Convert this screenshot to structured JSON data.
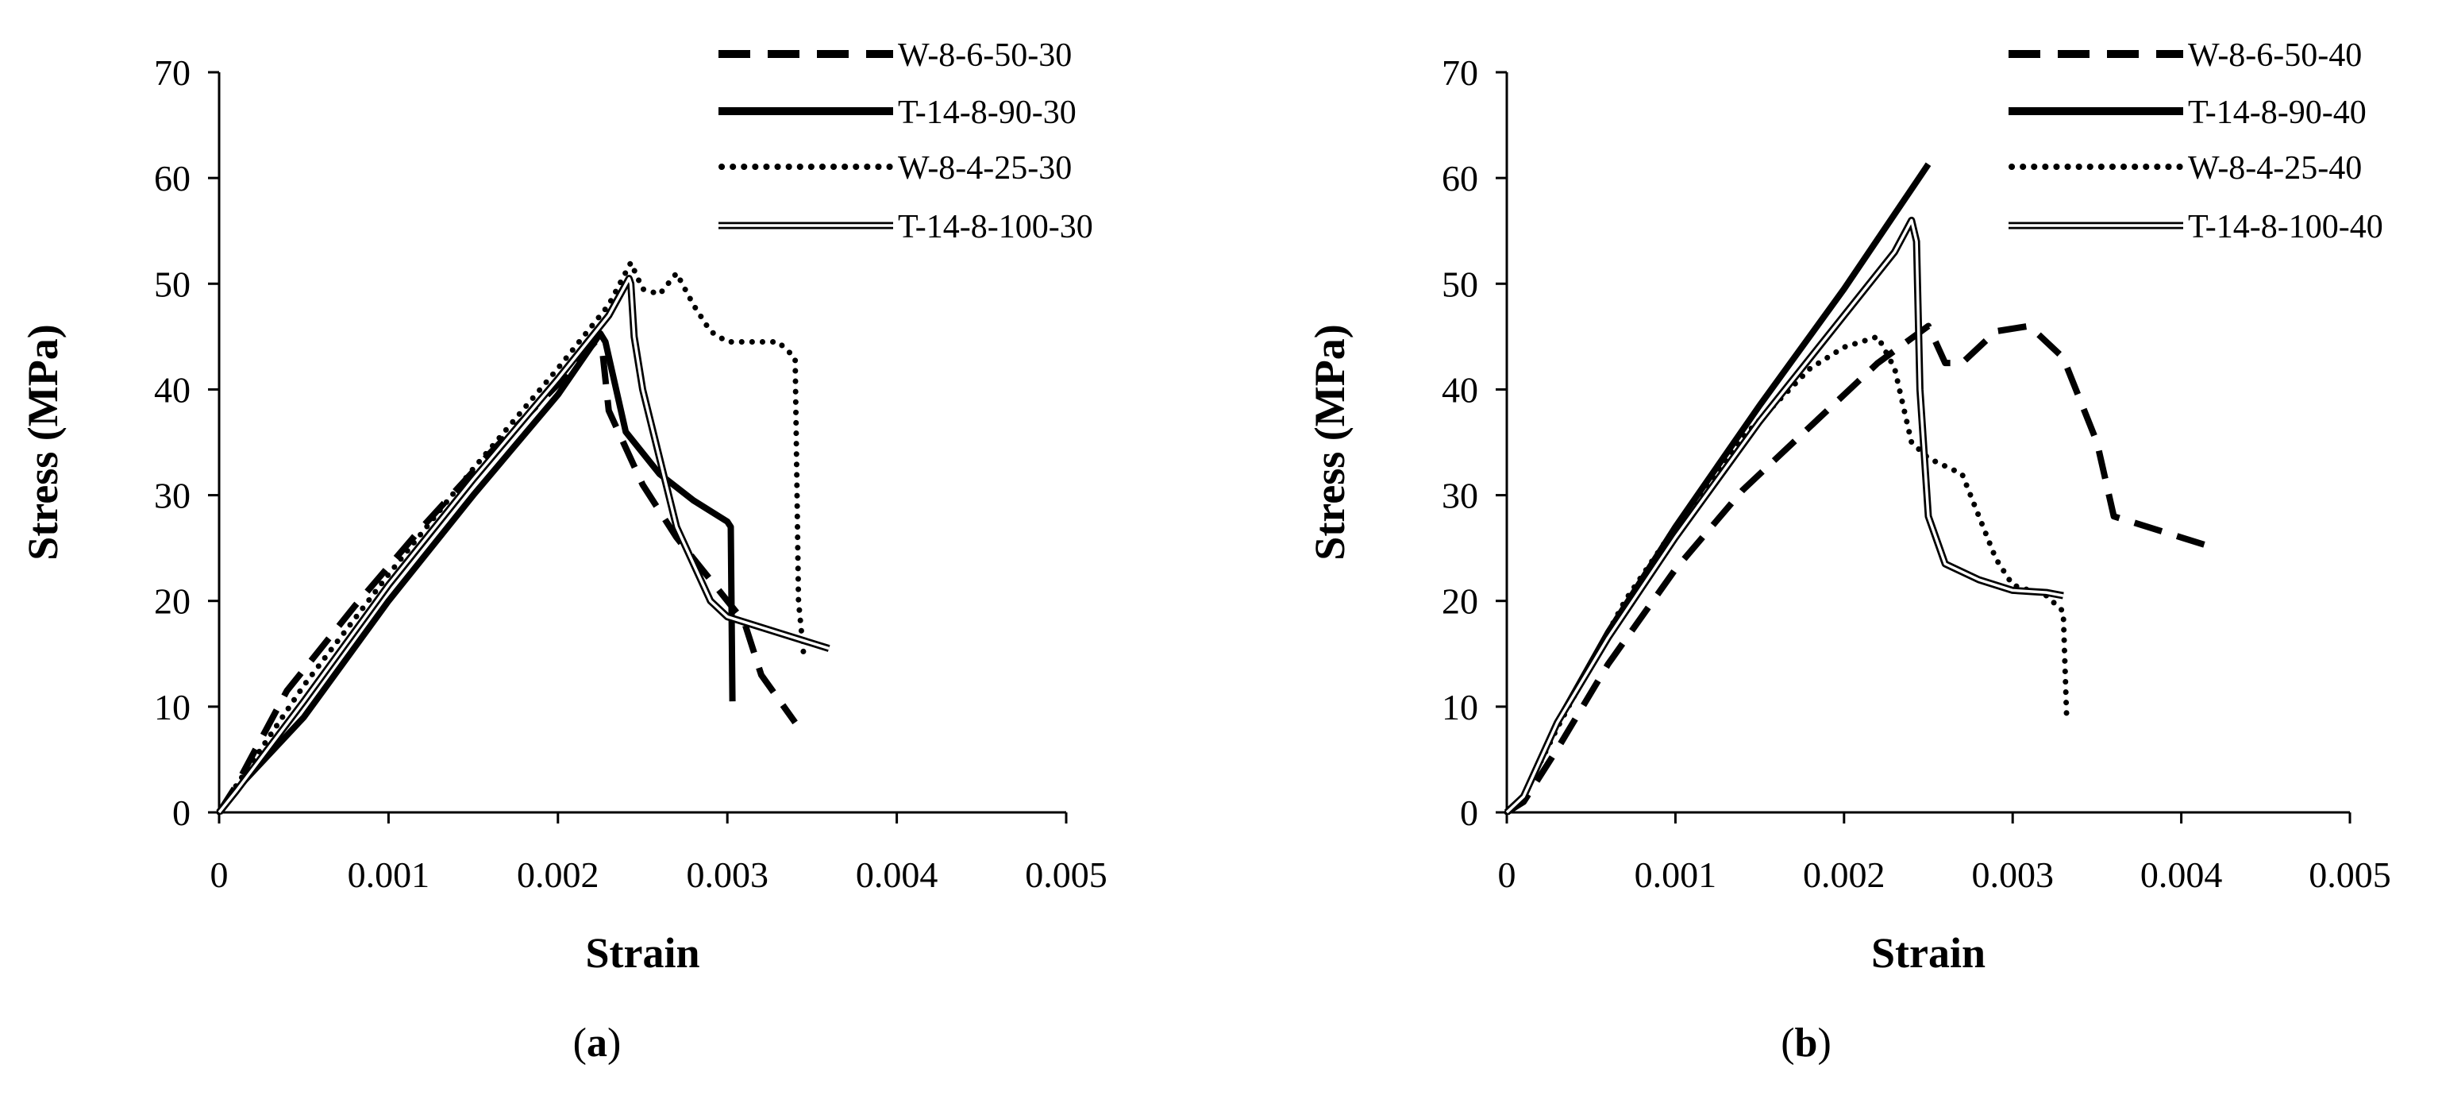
{
  "chart_data": [
    {
      "type": "line",
      "panel_label": "a",
      "xlabel": "Strain",
      "ylabel": "Stress (MPa)",
      "xlim": [
        0,
        0.005
      ],
      "ylim": [
        0,
        70
      ],
      "x_ticks": [
        {
          "value": 0,
          "label": "0"
        },
        {
          "value": 0.001,
          "label": "0.001"
        },
        {
          "value": 0.002,
          "label": "0.002"
        },
        {
          "value": 0.003,
          "label": "0.003"
        },
        {
          "value": 0.004,
          "label": "0.004"
        },
        {
          "value": 0.005,
          "label": "0.005"
        }
      ],
      "y_ticks": [
        {
          "value": 0,
          "label": "0"
        },
        {
          "value": 10,
          "label": "10"
        },
        {
          "value": 20,
          "label": "20"
        },
        {
          "value": 30,
          "label": "30"
        },
        {
          "value": 40,
          "label": "40"
        },
        {
          "value": 50,
          "label": "50"
        },
        {
          "value": 60,
          "label": "60"
        },
        {
          "value": 70,
          "label": "70"
        }
      ],
      "grid": false,
      "legend": "top-right",
      "series": [
        {
          "name": "W-8-6-50-30",
          "style": "dashed",
          "x": [
            0,
            0.0001,
            0.0004,
            0.0008,
            0.0012,
            0.0016,
            0.002,
            0.00222,
            0.00226,
            0.0023,
            0.0025,
            0.0027,
            0.0029,
            0.0031,
            0.0032,
            0.0034
          ],
          "y": [
            0,
            2.5,
            11.5,
            19.5,
            27,
            34,
            40.5,
            44.5,
            44,
            38,
            31,
            26,
            22,
            18,
            13,
            8.5
          ]
        },
        {
          "name": "T-14-8-90-30",
          "style": "solid-thick",
          "x": [
            0,
            0.00015,
            0.0005,
            0.001,
            0.0015,
            0.002,
            0.00225,
            0.00228,
            0.0024,
            0.0026,
            0.0028,
            0.003,
            0.00302,
            0.00303
          ],
          "y": [
            0,
            3,
            9,
            20,
            30,
            39.5,
            45.3,
            44.5,
            36,
            32,
            29.5,
            27.5,
            27,
            10.5
          ]
        },
        {
          "name": "W-8-4-25-30",
          "style": "dotted",
          "x": [
            0,
            0.0001,
            0.0005,
            0.001,
            0.0015,
            0.002,
            0.0023,
            0.00243,
            0.0025,
            0.0026,
            0.0027,
            0.0028,
            0.0029,
            0.003,
            0.0033,
            0.0034,
            0.00342,
            0.00345
          ],
          "y": [
            0,
            2.5,
            12,
            22.5,
            32.5,
            42,
            48,
            52,
            49.5,
            49,
            51,
            48,
            45.5,
            44.5,
            44.5,
            43,
            20,
            15
          ]
        },
        {
          "name": "T-14-8-100-30",
          "style": "double",
          "x": [
            0,
            0.0001,
            0.0005,
            0.001,
            0.0015,
            0.002,
            0.0023,
            0.00242,
            0.00243,
            0.00245,
            0.0025,
            0.0027,
            0.0029,
            0.003,
            0.0033,
            0.0036
          ],
          "y": [
            0,
            2,
            10.5,
            21.5,
            31.5,
            41,
            47,
            50.5,
            50,
            45,
            40,
            27,
            20,
            18.5,
            17,
            15.5
          ]
        }
      ]
    },
    {
      "type": "line",
      "panel_label": "b",
      "xlabel": "Strain",
      "ylabel": "Stress (MPa)",
      "xlim": [
        0,
        0.005
      ],
      "ylim": [
        0,
        70
      ],
      "x_ticks": [
        {
          "value": 0,
          "label": "0"
        },
        {
          "value": 0.001,
          "label": "0.001"
        },
        {
          "value": 0.002,
          "label": "0.002"
        },
        {
          "value": 0.003,
          "label": "0.003"
        },
        {
          "value": 0.004,
          "label": "0.004"
        },
        {
          "value": 0.005,
          "label": "0.005"
        }
      ],
      "y_ticks": [
        {
          "value": 0,
          "label": "0"
        },
        {
          "value": 10,
          "label": "10"
        },
        {
          "value": 20,
          "label": "20"
        },
        {
          "value": 30,
          "label": "30"
        },
        {
          "value": 40,
          "label": "40"
        },
        {
          "value": 50,
          "label": "50"
        },
        {
          "value": 60,
          "label": "60"
        },
        {
          "value": 70,
          "label": "70"
        }
      ],
      "grid": false,
      "legend": "top-right",
      "series": [
        {
          "name": "W-8-6-50-40",
          "style": "dashed",
          "x": [
            0,
            0.0001,
            0.0003,
            0.0006,
            0.001,
            0.0014,
            0.0018,
            0.0022,
            0.0025,
            0.0026,
            0.0027,
            0.0029,
            0.0031,
            0.0033,
            0.0035,
            0.0036,
            0.004,
            0.0042
          ],
          "y": [
            0,
            1,
            6,
            14,
            23,
            30.5,
            36.5,
            42.5,
            46,
            42.5,
            42.5,
            45.5,
            46,
            43,
            35,
            28,
            26,
            25
          ]
        },
        {
          "name": "T-14-8-90-40",
          "style": "solid-thick",
          "x": [
            0,
            0.0001,
            0.0003,
            0.0006,
            0.001,
            0.0015,
            0.002,
            0.0025
          ],
          "y": [
            0,
            1.5,
            8.5,
            17,
            27,
            38.5,
            49.5,
            61.3
          ]
        },
        {
          "name": "W-8-4-25-40",
          "style": "dotted",
          "x": [
            0,
            0.0001,
            0.0003,
            0.0007,
            0.001,
            0.0014,
            0.0018,
            0.002,
            0.0022,
            0.0023,
            0.0024,
            0.0025,
            0.0027,
            0.0028,
            0.0029,
            0.003,
            0.0032,
            0.0033,
            0.00332
          ],
          "y": [
            0,
            1.5,
            8,
            20,
            27,
            35.5,
            42,
            44,
            45,
            42,
            35,
            33.5,
            32,
            28,
            24,
            21.5,
            20.5,
            19,
            9
          ]
        },
        {
          "name": "T-14-8-100-40",
          "style": "double",
          "x": [
            0,
            0.0001,
            0.0003,
            0.0006,
            0.001,
            0.0015,
            0.002,
            0.0023,
            0.0024,
            0.00243,
            0.00245,
            0.0025,
            0.0026,
            0.0028,
            0.003,
            0.0032,
            0.0033
          ],
          "y": [
            0,
            1.5,
            8.5,
            16.5,
            26,
            37,
            47,
            53,
            56,
            54,
            40,
            28,
            23.5,
            22,
            21,
            20.8,
            20.5
          ]
        }
      ]
    }
  ]
}
